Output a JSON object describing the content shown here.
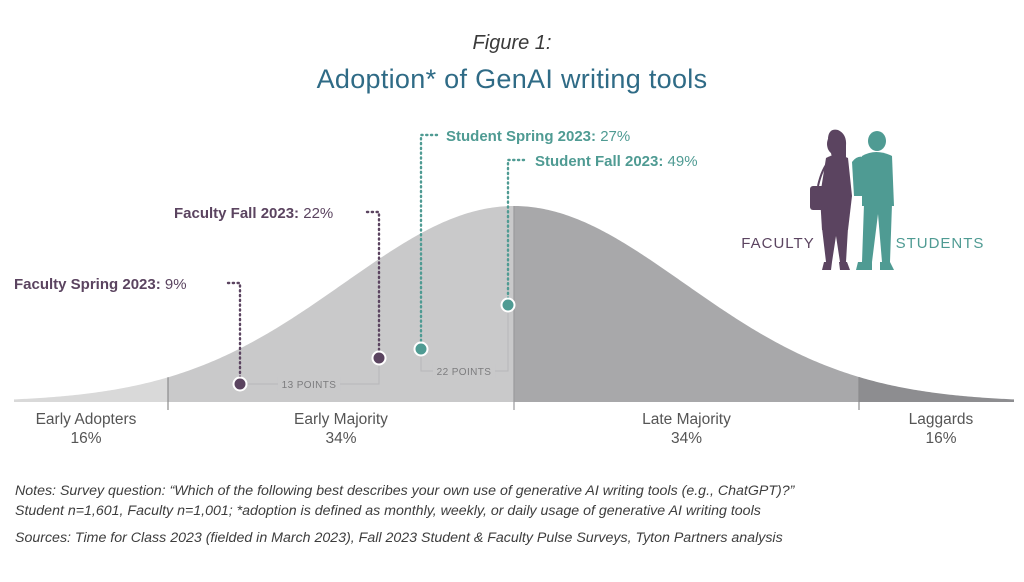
{
  "figure": {
    "label": "Figure 1:",
    "title": "Adoption* of GenAI writing tools"
  },
  "colors": {
    "faculty": "#5b4460",
    "students": "#4f9b93",
    "curve_light": "#d9d9d9",
    "curve_mid": "#c9c9ca",
    "curve_dark": "#a8a8aa",
    "curve_darkest": "#8d8d90",
    "title": "#2f6b86"
  },
  "chart_data": {
    "type": "area",
    "curve": "bell",
    "segments": [
      {
        "name": "Early Adopters",
        "percent": "16%",
        "value": 16
      },
      {
        "name": "Early Majority",
        "percent": "34%",
        "value": 34
      },
      {
        "name": "Late Majority",
        "percent": "34%",
        "value": 34
      },
      {
        "name": "Laggards",
        "percent": "16%",
        "value": 16
      }
    ],
    "markers": [
      {
        "group": "faculty",
        "label": "Faculty Spring 2023:",
        "value_label": "9%",
        "adoption": 9
      },
      {
        "group": "faculty",
        "label": "Faculty Fall 2023:",
        "value_label": "22%",
        "adoption": 22
      },
      {
        "group": "students",
        "label": "Student Spring 2023:",
        "value_label": "27%",
        "adoption": 27
      },
      {
        "group": "students",
        "label": "Student Fall 2023:",
        "value_label": "49%",
        "adoption": 49
      }
    ],
    "gaps": [
      {
        "group": "faculty",
        "label": "13 POINTS",
        "value": 13
      },
      {
        "group": "students",
        "label": "22 POINTS",
        "value": 22
      }
    ],
    "legend": {
      "faculty": "FACULTY",
      "students": "STUDENTS"
    }
  },
  "notes": {
    "line1": "Notes: Survey question: “Which of the following best describes your own use of generative AI writing tools (e.g., ChatGPT)?”",
    "line2": "Student n=1,601, Faculty n=1,001; *adoption is defined as monthly, weekly, or daily usage of generative AI writing tools",
    "sources": "Sources: Time for Class 2023 (fielded in March 2023), Fall 2023 Student & Faculty Pulse Surveys, Tyton Partners analysis"
  }
}
